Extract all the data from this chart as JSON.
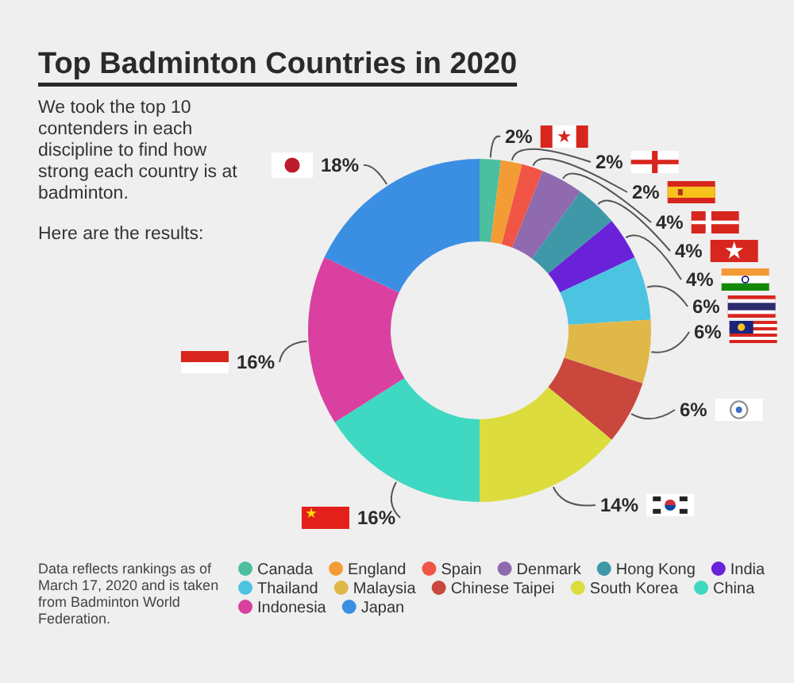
{
  "chart_data": {
    "type": "donut",
    "title": "Top Badminton Countries in 2020",
    "subtitle": "We took the top 10 contenders in each discipline to find how strong each country is at badminton.",
    "annotations": [
      "Here are the results:",
      "Data reflects rankings as of March 17, 2020 and is taken from Badminton World Federation."
    ],
    "categories": [
      "Canada",
      "England",
      "Spain",
      "Denmark",
      "Hong Kong",
      "India",
      "Thailand",
      "Malaysia",
      "Chinese Taipei",
      "South Korea",
      "China",
      "Indonesia",
      "Japan"
    ],
    "values": [
      2,
      2,
      2,
      4,
      4,
      4,
      6,
      6,
      6,
      14,
      16,
      16,
      18
    ],
    "value_labels": [
      "2%",
      "2%",
      "2%",
      "4%",
      "4%",
      "4%",
      "6%",
      "6%",
      "6%",
      "14%",
      "16%",
      "16%",
      "18%"
    ],
    "colors": [
      "#4cbfa0",
      "#f39c35",
      "#f05545",
      "#8f6aae",
      "#3e98a8",
      "#6a22d9",
      "#4cc3e0",
      "#e0b84a",
      "#c9473d",
      "#dcdc3c",
      "#3fd8c2",
      "#d9409f",
      "#3b8fe3"
    ],
    "legend": "bottom"
  }
}
